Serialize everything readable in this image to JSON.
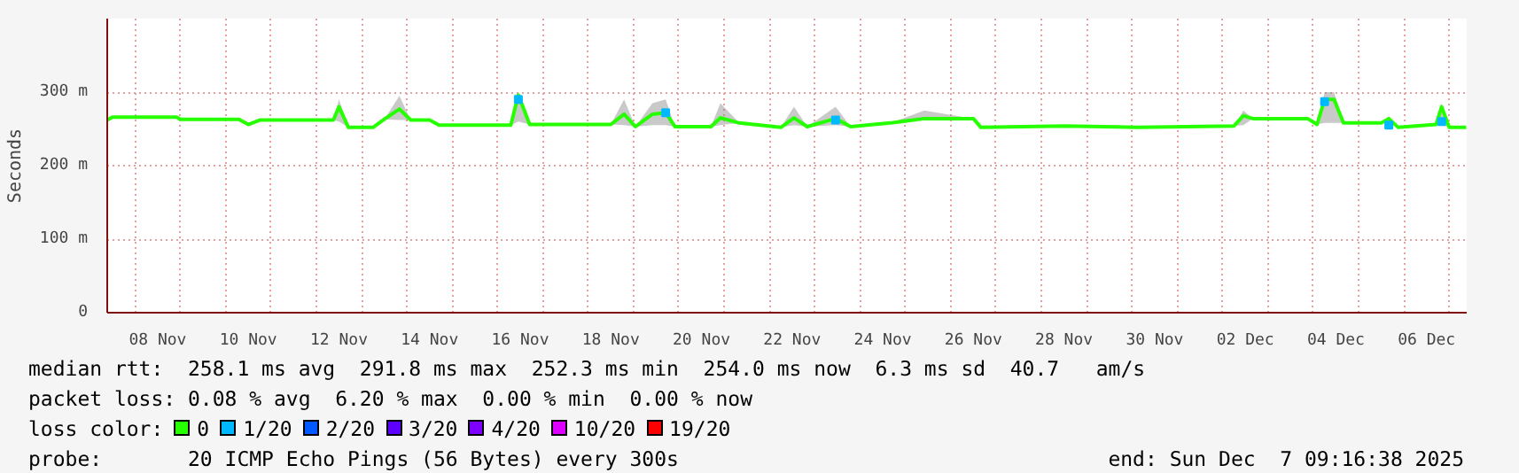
{
  "chart_data": {
    "type": "line",
    "ylabel": "Seconds",
    "xlim": [
      "2025-11-07T09:16",
      "2025-12-07T09:16"
    ],
    "ylim": [
      0,
      400
    ],
    "yticks": [
      0,
      {
        "value": 100,
        "label": "100 m"
      },
      {
        "value": 200,
        "label": "200 m"
      },
      {
        "value": 300,
        "label": "300 m"
      }
    ],
    "xticks": [
      {
        "value": "2025-11-08T12:00",
        "label": "08 Nov"
      },
      {
        "value": "2025-11-10T12:00",
        "label": "10 Nov"
      },
      {
        "value": "2025-11-12T12:00",
        "label": "12 Nov"
      },
      {
        "value": "2025-11-14T12:00",
        "label": "14 Nov"
      },
      {
        "value": "2025-11-16T12:00",
        "label": "16 Nov"
      },
      {
        "value": "2025-11-18T12:00",
        "label": "18 Nov"
      },
      {
        "value": "2025-11-20T12:00",
        "label": "20 Nov"
      },
      {
        "value": "2025-11-22T12:00",
        "label": "22 Nov"
      },
      {
        "value": "2025-11-24T12:00",
        "label": "24 Nov"
      },
      {
        "value": "2025-11-26T12:00",
        "label": "26 Nov"
      },
      {
        "value": "2025-11-28T12:00",
        "label": "28 Nov"
      },
      {
        "value": "2025-11-30T12:00",
        "label": "30 Nov"
      },
      {
        "value": "2025-12-02T12:00",
        "label": "02 Dec"
      },
      {
        "value": "2025-12-04T12:00",
        "label": "04 Dec"
      },
      {
        "value": "2025-12-06T12:00",
        "label": "06 Dec"
      },
      {
        "value": "2025-11-08",
        "label": null
      },
      {
        "value": "2025-11-09",
        "label": null
      },
      {
        "value": "2025-11-10",
        "label": null
      },
      {
        "value": "2025-11-11",
        "label": null
      },
      {
        "value": "2025-11-12",
        "label": null
      },
      {
        "value": "2025-11-13",
        "label": null
      },
      {
        "value": "2025-11-14",
        "label": null
      },
      {
        "value": "2025-11-15",
        "label": null
      },
      {
        "value": "2025-11-16",
        "label": null
      },
      {
        "value": "2025-11-17",
        "label": null
      },
      {
        "value": "2025-11-18",
        "label": null
      },
      {
        "value": "2025-11-19",
        "label": null
      },
      {
        "value": "2025-11-20",
        "label": null
      },
      {
        "value": "2025-11-21",
        "label": null
      },
      {
        "value": "2025-11-22",
        "label": null
      },
      {
        "value": "2025-11-23",
        "label": null
      },
      {
        "value": "2025-11-24",
        "label": null
      },
      {
        "value": "2025-11-25",
        "label": null
      },
      {
        "value": "2025-11-26",
        "label": null
      },
      {
        "value": "2025-11-27",
        "label": null
      },
      {
        "value": "2025-11-28",
        "label": null
      },
      {
        "value": "2025-11-29",
        "label": null
      },
      {
        "value": "2025-11-30",
        "label": null
      },
      {
        "value": "2025-12-01",
        "label": null
      },
      {
        "value": "2025-12-02",
        "label": null
      },
      {
        "value": "2025-12-03",
        "label": null
      },
      {
        "value": "2025-12-04",
        "label": null
      },
      {
        "value": "2025-12-05",
        "label": null
      },
      {
        "value": "2025-12-06",
        "label": null
      },
      {
        "value": "2025-12-07",
        "label": null
      }
    ],
    "x": [
      "2025-11-07T09:16",
      "2025-11-07T12:00",
      "2025-11-08T22:00",
      "2025-11-09T00:00",
      "2025-11-10T07:00",
      "2025-11-10T12:00",
      "2025-11-10T18:00",
      "2025-11-12T09:00",
      "2025-11-12T12:00",
      "2025-11-12T17:00",
      "2025-11-13T06:00",
      "2025-11-13T12:00",
      "2025-11-13T20:00",
      "2025-11-14T02:00",
      "2025-11-14T12:00",
      "2025-11-14T17:00",
      "2025-11-16T07:00",
      "2025-11-16T11:00",
      "2025-11-16T17:00",
      "2025-11-18T12:00",
      "2025-11-18T19:00",
      "2025-11-19T01:00",
      "2025-11-19T10:00",
      "2025-11-19T17:00",
      "2025-11-19T22:00",
      "2025-11-20T17:00",
      "2025-11-20T22:00",
      "2025-11-21T08:00",
      "2025-11-22T06:00",
      "2025-11-22T13:00",
      "2025-11-22T20:00",
      "2025-11-23T11:00",
      "2025-11-23T19:00",
      "2025-11-24T16:00",
      "2025-11-25T10:00",
      "2025-11-26T12:00",
      "2025-11-26T16:00",
      "2025-11-28T13:00",
      "2025-11-30T03:00",
      "2025-12-02T06:00",
      "2025-12-02T11:00",
      "2025-12-02T16:00",
      "2025-12-03T21:00",
      "2025-12-04T02:00",
      "2025-12-04T06:00",
      "2025-12-04T11:00",
      "2025-12-04T16:00",
      "2025-12-05T12:00",
      "2025-12-05T16:00",
      "2025-12-05T21:00",
      "2025-12-06T17:00",
      "2025-12-06T20:00",
      "2025-12-07T00:00",
      "2025-12-07T09:00"
    ],
    "series": [
      {
        "name": "0",
        "color": "#26ff00",
        "values": [
          262,
          266,
          266,
          263,
          263,
          256,
          262,
          262,
          280,
          252,
          252,
          263,
          277,
          262,
          262,
          255,
          255,
          296,
          256,
          256,
          270,
          253,
          270,
          272,
          253,
          253,
          265,
          258,
          252,
          265,
          253,
          264,
          253,
          258,
          264,
          264,
          252,
          254,
          252,
          254,
          268,
          264,
          264,
          256,
          290,
          290,
          258,
          258,
          264,
          252,
          256,
          280,
          252,
          252
        ],
        "lower": [
          262,
          266,
          266,
          263,
          263,
          256,
          262,
          262,
          260,
          252,
          252,
          263,
          262,
          262,
          262,
          255,
          255,
          260,
          256,
          256,
          255,
          253,
          255,
          255,
          253,
          253,
          255,
          258,
          252,
          255,
          253,
          255,
          253,
          258,
          264,
          264,
          252,
          254,
          252,
          254,
          255,
          264,
          264,
          256,
          258,
          258,
          258,
          258,
          258,
          252,
          256,
          255,
          252,
          252
        ],
        "upper": [
          262,
          266,
          266,
          263,
          263,
          256,
          262,
          262,
          290,
          252,
          252,
          263,
          295,
          262,
          262,
          255,
          255,
          300,
          256,
          256,
          290,
          253,
          285,
          290,
          253,
          253,
          285,
          258,
          252,
          280,
          253,
          280,
          253,
          258,
          275,
          264,
          252,
          254,
          252,
          254,
          275,
          264,
          264,
          256,
          300,
          300,
          258,
          258,
          264,
          252,
          256,
          285,
          252,
          252
        ]
      },
      {
        "name": "1/20",
        "color": "#00b8ff",
        "type": "scatter",
        "marker": "square",
        "x": [
          "2025-11-16T11:00",
          "2025-11-19T17:00",
          "2025-11-23T11:00",
          "2025-12-04T06:00",
          "2025-12-05T16:00",
          "2025-12-06T20:00"
        ],
        "values": [
          290,
          272,
          262,
          287,
          255,
          260
        ]
      },
      {
        "name": "2/20",
        "color": "#0059ff",
        "type": "scatter",
        "values": [
          null,
          null,
          null,
          null,
          null,
          null,
          null,
          null,
          null,
          null,
          null,
          null,
          null,
          null,
          null,
          null,
          null,
          null,
          null,
          null,
          null,
          null,
          null,
          null,
          null,
          null,
          null,
          null,
          null,
          null,
          null,
          null,
          null,
          null,
          null,
          null,
          null,
          null,
          null,
          null,
          null,
          null,
          null,
          null,
          null,
          null,
          null,
          null,
          null,
          null,
          null,
          null,
          null,
          null
        ]
      },
      {
        "name": "3/20",
        "color": "#5e00ff",
        "type": "scatter",
        "values": [
          null,
          null,
          null,
          null,
          null,
          null,
          null,
          null,
          null,
          null,
          null,
          null,
          null,
          null,
          null,
          null,
          null,
          null,
          null,
          null,
          null,
          null,
          null,
          null,
          null,
          null,
          null,
          null,
          null,
          null,
          null,
          null,
          null,
          null,
          null,
          null,
          null,
          null,
          null,
          null,
          null,
          null,
          null,
          null,
          null,
          null,
          null,
          null,
          null,
          null,
          null,
          null,
          null,
          null
        ]
      },
      {
        "name": "4/20",
        "color": "#7e00ff",
        "type": "scatter",
        "values": [
          null,
          null,
          null,
          null,
          null,
          null,
          null,
          null,
          null,
          null,
          null,
          null,
          null,
          null,
          null,
          null,
          null,
          null,
          null,
          null,
          null,
          null,
          null,
          null,
          null,
          null,
          null,
          null,
          null,
          null,
          null,
          null,
          null,
          null,
          null,
          null,
          null,
          null,
          null,
          null,
          null,
          null,
          null,
          null,
          null,
          null,
          null,
          null,
          null,
          null,
          null,
          null,
          null,
          null
        ]
      },
      {
        "name": "10/20",
        "color": "#dd00ff",
        "type": "scatter",
        "values": [
          null,
          null,
          null,
          null,
          null,
          null,
          null,
          null,
          null,
          null,
          null,
          null,
          null,
          null,
          null,
          null,
          null,
          null,
          null,
          null,
          null,
          null,
          null,
          null,
          null,
          null,
          null,
          null,
          null,
          null,
          null,
          null,
          null,
          null,
          null,
          null,
          null,
          null,
          null,
          null,
          null,
          null,
          null,
          null,
          null,
          null,
          null,
          null,
          null,
          null,
          null,
          null,
          null,
          null
        ]
      },
      {
        "name": "19/20",
        "color": "#ff0000",
        "type": "scatter",
        "values": [
          null,
          null,
          null,
          null,
          null,
          null,
          null,
          null,
          null,
          null,
          null,
          null,
          null,
          null,
          null,
          null,
          null,
          null,
          null,
          null,
          null,
          null,
          null,
          null,
          null,
          null,
          null,
          null,
          null,
          null,
          null,
          null,
          null,
          null,
          null,
          null,
          null,
          null,
          null,
          null,
          null,
          null,
          null,
          null,
          null,
          null,
          null,
          null,
          null,
          null,
          null,
          null,
          null,
          null
        ]
      }
    ],
    "grid": true,
    "legend": "bottom",
    "line_style": "solid",
    "annotations": [
      "median rtt:  258.1 ms avg  291.8 ms max  252.3 ms min  254.0 ms now  6.3 ms sd  40.7   am/s",
      "packet loss: 0.08 % avg  6.20 % max  0.00 % min  0.00 % now",
      "loss color:",
      "probe:       20 ICMP Echo Pings (56 Bytes) every 300s",
      "end: Sun Dec  7 09:16:38 2025"
    ]
  }
}
